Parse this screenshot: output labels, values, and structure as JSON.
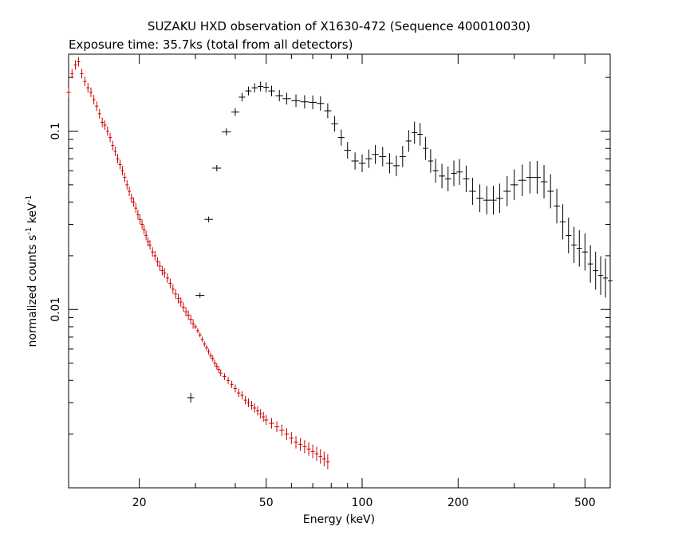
{
  "chart_data": {
    "type": "scatter",
    "title": "SUZAKU HXD observation of X1630-472 (Sequence 400010030)",
    "subtitle": "Exposure time: 35.7ks (total from all detectors)",
    "xlabel": "Energy (keV)",
    "ylabel": "normalized counts s",
    "ylabel_sup1": "-1",
    "ylabel_mid": " keV",
    "ylabel_sup2": "-1",
    "x_scale": "log",
    "y_scale": "log",
    "xlim": [
      12,
      600
    ],
    "ylim": [
      0.001,
      0.27
    ],
    "x_ticks": [
      20,
      50,
      100,
      200,
      500
    ],
    "x_tick_labels": [
      "20",
      "50",
      "100",
      "200",
      "500"
    ],
    "y_ticks": [
      0.01,
      0.1
    ],
    "y_tick_labels": [
      "0.01",
      "0.1"
    ],
    "grid": false,
    "series": [
      {
        "color": "#cc0000",
        "points": [
          [
            12.0,
            0.165
          ],
          [
            12.3,
            0.21
          ],
          [
            12.6,
            0.235
          ],
          [
            12.9,
            0.245
          ],
          [
            13.2,
            0.21
          ],
          [
            13.5,
            0.19
          ],
          [
            13.8,
            0.175
          ],
          [
            14.1,
            0.165
          ],
          [
            14.4,
            0.15
          ],
          [
            14.7,
            0.138
          ],
          [
            15.0,
            0.125
          ],
          [
            15.3,
            0.112
          ],
          [
            15.6,
            0.108
          ],
          [
            15.9,
            0.1
          ],
          [
            16.2,
            0.092
          ],
          [
            16.5,
            0.083
          ],
          [
            16.8,
            0.077
          ],
          [
            17.1,
            0.07
          ],
          [
            17.4,
            0.065
          ],
          [
            17.7,
            0.06
          ],
          [
            18.0,
            0.055
          ],
          [
            18.3,
            0.05
          ],
          [
            18.6,
            0.046
          ],
          [
            18.9,
            0.042
          ],
          [
            19.2,
            0.04
          ],
          [
            19.5,
            0.037
          ],
          [
            19.8,
            0.034
          ],
          [
            20.1,
            0.032
          ],
          [
            20.4,
            0.03
          ],
          [
            20.7,
            0.028
          ],
          [
            21.0,
            0.026
          ],
          [
            21.3,
            0.024
          ],
          [
            21.6,
            0.023
          ],
          [
            22.0,
            0.021
          ],
          [
            22.4,
            0.02
          ],
          [
            22.8,
            0.0185
          ],
          [
            23.2,
            0.0175
          ],
          [
            23.6,
            0.0165
          ],
          [
            24.0,
            0.016
          ],
          [
            24.5,
            0.015
          ],
          [
            25.0,
            0.014
          ],
          [
            25.5,
            0.013
          ],
          [
            26.0,
            0.0122
          ],
          [
            26.5,
            0.0115
          ],
          [
            27.0,
            0.011
          ],
          [
            27.5,
            0.0103
          ],
          [
            28.0,
            0.0097
          ],
          [
            28.5,
            0.0093
          ],
          [
            29.0,
            0.0088
          ],
          [
            29.5,
            0.0083
          ],
          [
            30.0,
            0.008
          ],
          [
            30.5,
            0.0076
          ],
          [
            31.0,
            0.0072
          ],
          [
            31.5,
            0.0068
          ],
          [
            32.0,
            0.0064
          ],
          [
            32.5,
            0.0061
          ],
          [
            33.0,
            0.0058
          ],
          [
            33.5,
            0.0055
          ],
          [
            34.0,
            0.0053
          ],
          [
            34.5,
            0.005
          ],
          [
            35.0,
            0.0048
          ],
          [
            35.5,
            0.0046
          ],
          [
            36.0,
            0.0044
          ],
          [
            37.0,
            0.0042
          ],
          [
            38.0,
            0.004
          ],
          [
            39.0,
            0.0038
          ],
          [
            40.0,
            0.0036
          ],
          [
            41.0,
            0.0034
          ],
          [
            42.0,
            0.0033
          ],
          [
            43.0,
            0.0031
          ],
          [
            44.0,
            0.003
          ],
          [
            45.0,
            0.0029
          ],
          [
            46.0,
            0.0028
          ],
          [
            47.0,
            0.0027
          ],
          [
            48.0,
            0.0026
          ],
          [
            49.0,
            0.0025
          ],
          [
            50.0,
            0.0024
          ],
          [
            52.0,
            0.0023
          ],
          [
            54.0,
            0.0022
          ],
          [
            56.0,
            0.0021
          ],
          [
            58.0,
            0.002
          ],
          [
            60.0,
            0.0019
          ],
          [
            62.0,
            0.0018
          ],
          [
            64.0,
            0.00175
          ],
          [
            66.0,
            0.0017
          ],
          [
            68.0,
            0.00165
          ],
          [
            70.0,
            0.0016
          ],
          [
            72.0,
            0.00155
          ],
          [
            74.0,
            0.0015
          ],
          [
            76.0,
            0.00145
          ],
          [
            78.0,
            0.0014
          ]
        ]
      },
      {
        "color": "#000000",
        "points": [
          [
            29.0,
            0.0032
          ],
          [
            31.0,
            0.012
          ],
          [
            33.0,
            0.032
          ],
          [
            35.0,
            0.062
          ],
          [
            37.5,
            0.099
          ],
          [
            40.0,
            0.128
          ],
          [
            42.0,
            0.155
          ],
          [
            44.0,
            0.168
          ],
          [
            46.0,
            0.175
          ],
          [
            48.0,
            0.178
          ],
          [
            50.0,
            0.176
          ],
          [
            52.0,
            0.168
          ],
          [
            55.0,
            0.158
          ],
          [
            58.0,
            0.152
          ],
          [
            62.0,
            0.148
          ],
          [
            66.0,
            0.146
          ],
          [
            70.0,
            0.145
          ],
          [
            74.0,
            0.143
          ],
          [
            78.0,
            0.13
          ],
          [
            82.0,
            0.11
          ],
          [
            86.0,
            0.092
          ],
          [
            90.0,
            0.078
          ],
          [
            95.0,
            0.068
          ],
          [
            100.0,
            0.066
          ],
          [
            105.0,
            0.07
          ],
          [
            110.0,
            0.074
          ],
          [
            116.0,
            0.072
          ],
          [
            122.0,
            0.066
          ],
          [
            128.0,
            0.064
          ],
          [
            134.0,
            0.072
          ],
          [
            140.0,
            0.088
          ],
          [
            146.0,
            0.098
          ],
          [
            152.0,
            0.096
          ],
          [
            158.0,
            0.08
          ],
          [
            164.0,
            0.068
          ],
          [
            170.0,
            0.06
          ],
          [
            178.0,
            0.056
          ],
          [
            186.0,
            0.054
          ],
          [
            194.0,
            0.058
          ],
          [
            202.0,
            0.059
          ],
          [
            212.0,
            0.054
          ],
          [
            222.0,
            0.046
          ],
          [
            234.0,
            0.042
          ],
          [
            246.0,
            0.041
          ],
          [
            258.0,
            0.041
          ],
          [
            270.0,
            0.042
          ],
          [
            285.0,
            0.046
          ],
          [
            300.0,
            0.05
          ],
          [
            318.0,
            0.053
          ],
          [
            336.0,
            0.055
          ],
          [
            354.0,
            0.055
          ],
          [
            372.0,
            0.052
          ],
          [
            390.0,
            0.046
          ],
          [
            408.0,
            0.038
          ],
          [
            426.0,
            0.031
          ],
          [
            444.0,
            0.026
          ],
          [
            462.0,
            0.023
          ],
          [
            480.0,
            0.022
          ],
          [
            500.0,
            0.021
          ],
          [
            520.0,
            0.018
          ],
          [
            540.0,
            0.0165
          ],
          [
            560.0,
            0.0155
          ],
          [
            580.0,
            0.015
          ],
          [
            600.0,
            0.0145
          ]
        ]
      }
    ]
  }
}
